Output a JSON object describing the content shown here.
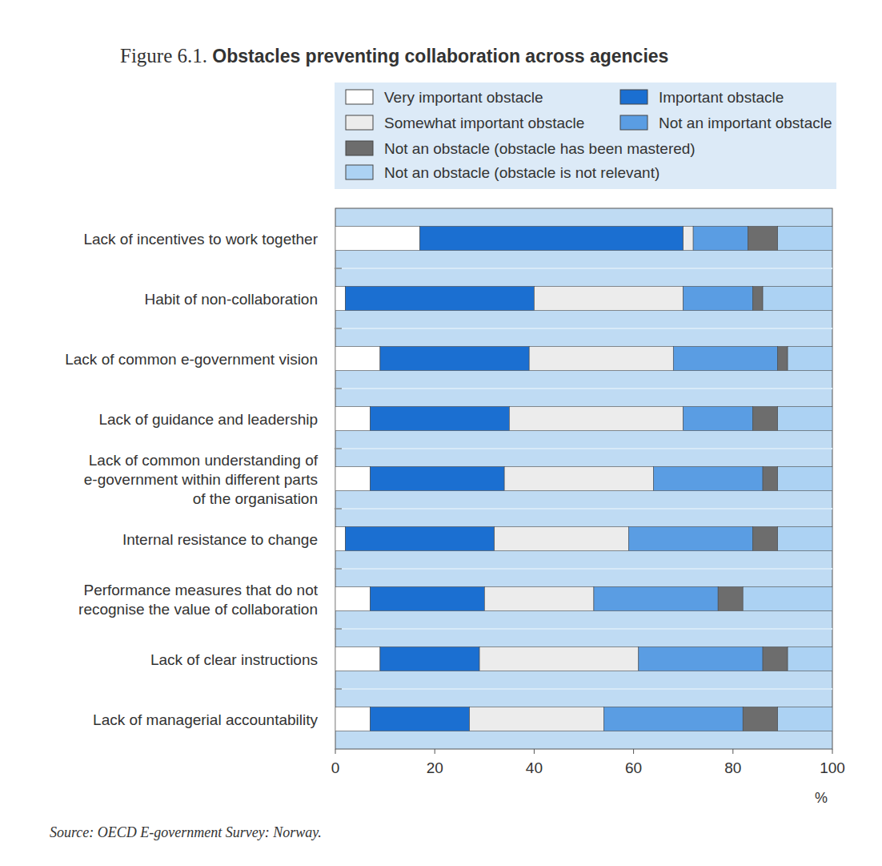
{
  "chart_data": {
    "type": "bar",
    "orientation": "horizontal",
    "stacked": true,
    "title": "Figure 6.1. Obstacles preventing collaboration across agencies",
    "annotations": [
      "Source: OECD E-government Survey: Norway."
    ],
    "x_label": "%",
    "categories": [
      "Lack of incentives to work together",
      "Habit of non-collaboration",
      "Lack of common e-government vision",
      "Lack of guidance and leadership",
      "Lack of common understanding of\ne-government within different parts\nof the organisation",
      "Internal resistance to change",
      "Performance measures that do not\nrecognise the value of collaboration",
      "Lack of clear instructions",
      "Lack of managerial accountability"
    ],
    "series": [
      {
        "name": "Very important obstacle",
        "color": "#ffffff",
        "values": [
          17,
          2,
          9,
          7,
          7,
          2,
          7,
          9,
          7
        ]
      },
      {
        "name": "Important obstacle",
        "color": "#1b6fd1",
        "values": [
          53,
          38,
          30,
          28,
          27,
          30,
          23,
          20,
          20
        ]
      },
      {
        "name": "Somewhat important obstacle",
        "color": "#ececec",
        "values": [
          2,
          30,
          29,
          35,
          30,
          27,
          22,
          32,
          27
        ]
      },
      {
        "name": "Not an important obstacle",
        "color": "#5a9de3",
        "values": [
          11,
          14,
          21,
          14,
          22,
          25,
          25,
          25,
          28
        ]
      },
      {
        "name": "Not an obstacle (obstacle has been mastered)",
        "color": "#6d6d6d",
        "values": [
          6,
          2,
          2,
          5,
          3,
          5,
          5,
          5,
          7
        ]
      },
      {
        "name": "Not an obstacle (obstacle is not relevant)",
        "color": "#acd2f3",
        "values": [
          11,
          14,
          9,
          11,
          11,
          11,
          18,
          9,
          11
        ]
      }
    ],
    "xlim": [
      0,
      100
    ],
    "xticks": [
      0,
      20,
      40,
      60,
      80,
      100
    ],
    "grid": false,
    "legend": "top"
  }
}
